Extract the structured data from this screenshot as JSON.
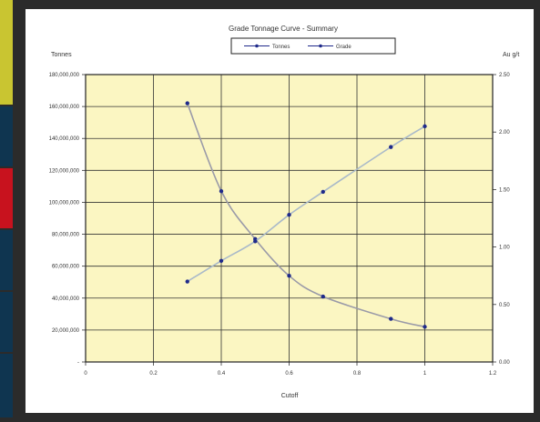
{
  "colors": {
    "plot_bg": "#fbf6c2",
    "chart_bg": "#ffffff",
    "frame": "#2b2b2b",
    "side_yellow": "#c9c531",
    "side_navy": "#0f3550",
    "side_red": "#c8121e",
    "series": "#1f2a8a",
    "tonnes_line": "#9a9aa8",
    "grade_line": "#a9b9c9"
  },
  "chart_data": {
    "type": "line",
    "title": "Grade Tonnage Curve - Summary",
    "xlabel": "Cutoff",
    "ylabel_left": "Tonnes",
    "ylabel_right": "Au g/t",
    "xlim": [
      0,
      1.2
    ],
    "ylim_left": [
      0,
      180000000
    ],
    "ylim_right": [
      0,
      2.5
    ],
    "x_ticks": [
      "0",
      "0.2",
      "0.4",
      "0.6",
      "0.8",
      "1",
      "1.2"
    ],
    "y_left_ticks": [
      "-",
      "20,000,000",
      "40,000,000",
      "60,000,000",
      "80,000,000",
      "100,000,000",
      "120,000,000",
      "140,000,000",
      "160,000,000",
      "180,000,000"
    ],
    "y_right_ticks": [
      "0.00",
      "0.50",
      "1.00",
      "1.50",
      "2.00",
      "2.50"
    ],
    "grid": true,
    "legend_position": "top-center",
    "series": [
      {
        "name": "Tonnes",
        "axis": "left",
        "x": [
          0.3,
          0.4,
          0.5,
          0.6,
          0.7,
          0.9,
          1.0
        ],
        "values": [
          162000000,
          107000000,
          77000000,
          54000000,
          41000000,
          27000000,
          22000000
        ]
      },
      {
        "name": "Grade",
        "axis": "right",
        "x": [
          0.3,
          0.4,
          0.5,
          0.6,
          0.7,
          0.9,
          1.0
        ],
        "values": [
          0.7,
          0.88,
          1.05,
          1.28,
          1.48,
          1.87,
          2.05
        ]
      }
    ]
  }
}
